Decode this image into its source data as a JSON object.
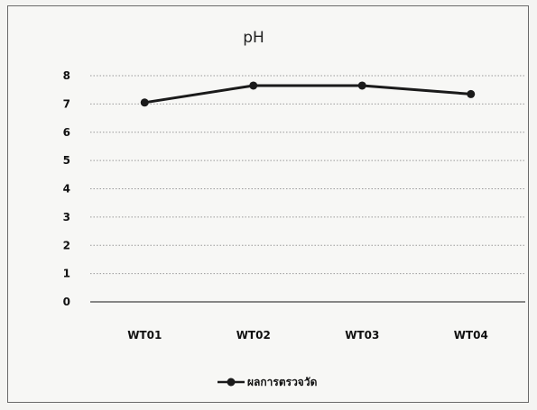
{
  "chart_data": {
    "type": "line",
    "title": "pH",
    "categories": [
      "WT01",
      "WT02",
      "WT03",
      "WT04"
    ],
    "series": [
      {
        "name": "ผลการตรวจวัด",
        "values": [
          7.05,
          7.65,
          7.65,
          7.35
        ]
      }
    ],
    "ylim": [
      0,
      8
    ],
    "yticks": [
      0,
      1,
      2,
      3,
      4,
      5,
      6,
      7,
      8
    ],
    "grid": true,
    "legend_position": "bottom",
    "colors": {
      "line": "#1a1a1a",
      "grid": "#9a9a9a",
      "axis": "#444444"
    }
  }
}
